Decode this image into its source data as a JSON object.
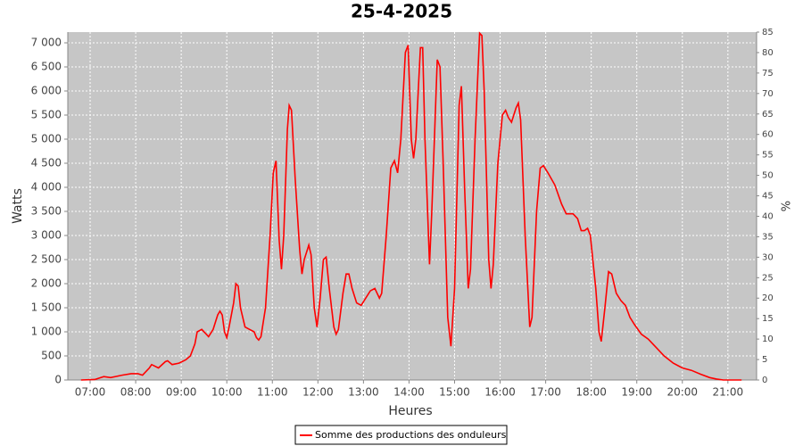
{
  "chart_data": {
    "type": "line",
    "title": "25-4-2025",
    "x_label": "Heures",
    "y_label": "Watts",
    "y2_label": "%",
    "x": [
      6.8,
      7.1,
      7.3,
      7.45,
      7.7,
      7.9,
      8.05,
      8.15,
      8.3,
      8.35,
      8.5,
      8.65,
      8.7,
      8.8,
      8.95,
      9.1,
      9.2,
      9.3,
      9.35,
      9.45,
      9.55,
      9.6,
      9.7,
      9.8,
      9.85,
      9.9,
      9.95,
      10.0,
      10.05,
      10.15,
      10.2,
      10.25,
      10.3,
      10.4,
      10.5,
      10.6,
      10.65,
      10.7,
      10.75,
      10.85,
      10.95,
      11.02,
      11.08,
      11.15,
      11.2,
      11.25,
      11.33,
      11.37,
      11.42,
      11.5,
      11.6,
      11.65,
      11.7,
      11.8,
      11.85,
      11.92,
      11.98,
      12.05,
      12.12,
      12.18,
      12.25,
      12.35,
      12.4,
      12.45,
      12.55,
      12.62,
      12.68,
      12.75,
      12.85,
      12.95,
      13.05,
      13.15,
      13.25,
      13.3,
      13.35,
      13.4,
      13.5,
      13.6,
      13.68,
      13.75,
      13.82,
      13.92,
      13.98,
      14.05,
      14.1,
      14.15,
      14.25,
      14.3,
      14.35,
      14.45,
      14.5,
      14.62,
      14.68,
      14.75,
      14.85,
      14.92,
      15.0,
      15.1,
      15.15,
      15.22,
      15.3,
      15.35,
      15.45,
      15.55,
      15.6,
      15.65,
      15.75,
      15.8,
      15.85,
      15.95,
      16.05,
      16.12,
      16.18,
      16.25,
      16.35,
      16.4,
      16.45,
      16.55,
      16.65,
      16.7,
      16.8,
      16.88,
      16.95,
      17.05,
      17.2,
      17.35,
      17.45,
      17.6,
      17.7,
      17.78,
      17.85,
      17.92,
      17.98,
      18.1,
      18.17,
      18.22,
      18.3,
      18.38,
      18.45,
      18.55,
      18.65,
      18.75,
      18.85,
      18.95,
      19.1,
      19.25,
      19.4,
      19.6,
      19.8,
      20.0,
      20.2,
      20.4,
      20.6,
      20.75,
      20.9,
      21.3
    ],
    "series": [
      {
        "name": "Somme des productions des onduleurs",
        "color": "#ff0000",
        "values": [
          0,
          10,
          70,
          50,
          100,
          130,
          130,
          100,
          250,
          320,
          250,
          380,
          400,
          320,
          350,
          420,
          500,
          750,
          1000,
          1050,
          950,
          900,
          1050,
          1350,
          1430,
          1350,
          1000,
          880,
          1100,
          1600,
          2000,
          1950,
          1500,
          1100,
          1050,
          1000,
          880,
          830,
          900,
          1500,
          3000,
          4300,
          4550,
          2900,
          2300,
          3000,
          5200,
          5700,
          5600,
          4200,
          2700,
          2200,
          2500,
          2800,
          2600,
          1500,
          1100,
          1700,
          2500,
          2550,
          1900,
          1100,
          950,
          1050,
          1800,
          2200,
          2200,
          1900,
          1600,
          1550,
          1700,
          1850,
          1900,
          1800,
          1700,
          1800,
          3000,
          4400,
          4550,
          4300,
          5000,
          6800,
          6950,
          5000,
          4600,
          5000,
          6900,
          6900,
          5000,
          2400,
          3500,
          6650,
          6500,
          4500,
          1300,
          700,
          1900,
          5700,
          6100,
          4000,
          1900,
          2300,
          5000,
          7200,
          7150,
          6000,
          2500,
          1900,
          2400,
          4500,
          5500,
          5600,
          5450,
          5350,
          5650,
          5750,
          5400,
          3000,
          1100,
          1300,
          3500,
          4400,
          4450,
          4300,
          4050,
          3650,
          3450,
          3450,
          3350,
          3100,
          3100,
          3150,
          3000,
          1900,
          1000,
          800,
          1500,
          2250,
          2200,
          1800,
          1650,
          1550,
          1300,
          1150,
          950,
          850,
          700,
          500,
          350,
          250,
          200,
          120,
          50,
          20,
          0,
          0
        ]
      }
    ],
    "xlim": [
      6.51,
      21.63
    ],
    "xticks": [
      {
        "value": 7,
        "label": "07:00"
      },
      {
        "value": 8,
        "label": "08:00"
      },
      {
        "value": 9,
        "label": "09:00"
      },
      {
        "value": 10,
        "label": "10:00"
      },
      {
        "value": 11,
        "label": "11:00"
      },
      {
        "value": 12,
        "label": "12:00"
      },
      {
        "value": 13,
        "label": "13:00"
      },
      {
        "value": 14,
        "label": "14:00"
      },
      {
        "value": 15,
        "label": "15:00"
      },
      {
        "value": 16,
        "label": "16:00"
      },
      {
        "value": 17,
        "label": "17:00"
      },
      {
        "value": 18,
        "label": "18:00"
      },
      {
        "value": 19,
        "label": "19:00"
      },
      {
        "value": 20,
        "label": "20:00"
      },
      {
        "value": 21,
        "label": "21:00"
      }
    ],
    "ylim": [
      0,
      7222
    ],
    "yticks": [
      0,
      500,
      {
        "value": 1000,
        "label": "1 000"
      },
      {
        "value": 1500,
        "label": "1 500"
      },
      {
        "value": 2000,
        "label": "2 000"
      },
      {
        "value": 2500,
        "label": "2 500"
      },
      {
        "value": 3000,
        "label": "3 000"
      },
      {
        "value": 3500,
        "label": "3 500"
      },
      {
        "value": 4000,
        "label": "4 000"
      },
      {
        "value": 4500,
        "label": "4 500"
      },
      {
        "value": 5000,
        "label": "5 000"
      },
      {
        "value": 5500,
        "label": "5 500"
      },
      {
        "value": 6000,
        "label": "6 000"
      },
      {
        "value": 6500,
        "label": "6 500"
      },
      {
        "value": 7000,
        "label": "7 000"
      }
    ],
    "y2lim": [
      0,
      85
    ],
    "y2ticks": [
      0,
      5,
      10,
      15,
      20,
      25,
      30,
      35,
      40,
      45,
      50,
      55,
      60,
      65,
      70,
      75,
      80,
      85
    ],
    "grid": true,
    "legend": "bottom"
  }
}
